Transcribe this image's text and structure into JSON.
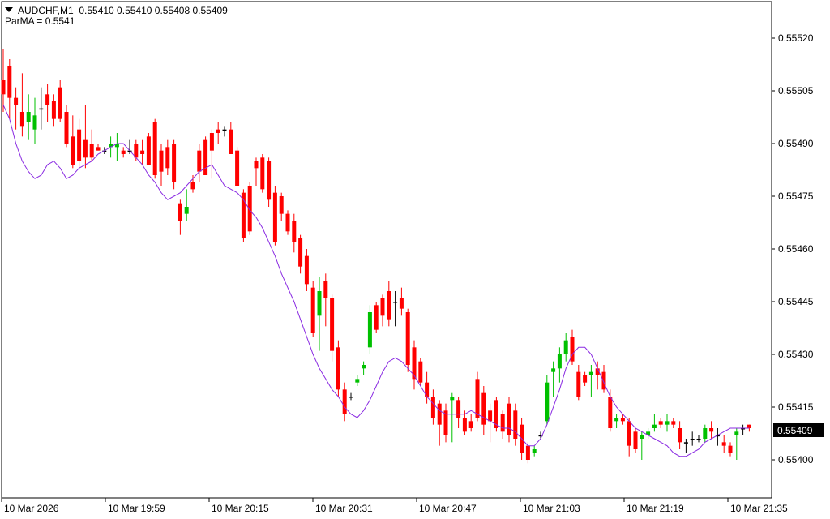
{
  "header": {
    "symbol": "AUDCHF,M1",
    "ohlc": "0.55410 0.55410 0.55408 0.55409",
    "indicator": "ParMA = 0.5541"
  },
  "colors": {
    "bull": "#00c000",
    "bear": "#ff0000",
    "doji": "#000000",
    "ma": "#8a2be2",
    "axis": "#000000",
    "price_box_bg": "#000000",
    "price_box_text": "#ffffff"
  },
  "chart_data": {
    "type": "candlestick",
    "symbol": "AUDCHF",
    "timeframe": "M1",
    "current_price": "0.55409",
    "y_ticks": [
      "0.55520",
      "0.55505",
      "0.55490",
      "0.55475",
      "0.55460",
      "0.55445",
      "0.55430",
      "0.55415",
      "0.55400"
    ],
    "x_ticks": [
      "10 Mar 2026",
      "10 Mar 19:59",
      "10 Mar 20:15",
      "10 Mar 20:31",
      "10 Mar 20:47",
      "10 Mar 21:03",
      "10 Mar 21:19",
      "10 Mar 21:35"
    ],
    "ylim": [
      0.55394,
      0.55528
    ],
    "candles": [
      [
        0.55508,
        0.55517,
        0.55499,
        0.55504
      ],
      [
        0.55512,
        0.55514,
        0.55497,
        0.55503
      ],
      [
        0.55503,
        0.55506,
        0.55494,
        0.55501
      ],
      [
        0.55499,
        0.5551,
        0.55492,
        0.55495
      ],
      [
        0.55496,
        0.55504,
        0.55491,
        0.55499
      ],
      [
        0.55494,
        0.55503,
        0.5549,
        0.55498
      ],
      [
        0.555,
        0.55506,
        0.55494,
        0.555
      ],
      [
        0.55504,
        0.55507,
        0.55496,
        0.55501
      ],
      [
        0.55502,
        0.55504,
        0.55495,
        0.55497
      ],
      [
        0.55506,
        0.55508,
        0.55496,
        0.55497
      ],
      [
        0.55499,
        0.55501,
        0.55489,
        0.5549
      ],
      [
        0.55492,
        0.55498,
        0.55483,
        0.55484
      ],
      [
        0.55494,
        0.55497,
        0.55483,
        0.55485
      ],
      [
        0.55491,
        0.55501,
        0.55483,
        0.55486
      ],
      [
        0.5549,
        0.55494,
        0.55485,
        0.55486
      ],
      [
        0.55489,
        0.5549,
        0.55488,
        0.55488
      ],
      [
        0.55488,
        0.55489,
        0.55487,
        0.55488
      ],
      [
        0.55489,
        0.55492,
        0.55486,
        0.5549
      ],
      [
        0.55489,
        0.55493,
        0.55485,
        0.5549
      ],
      [
        0.55488,
        0.55489,
        0.55486,
        0.55487
      ],
      [
        0.55488,
        0.55491,
        0.55487,
        0.55488
      ],
      [
        0.5549,
        0.55491,
        0.55485,
        0.55486
      ],
      [
        0.55488,
        0.55491,
        0.55484,
        0.55487
      ],
      [
        0.55492,
        0.55493,
        0.55484,
        0.55484
      ],
      [
        0.55496,
        0.55497,
        0.5548,
        0.55481
      ],
      [
        0.55488,
        0.5549,
        0.55478,
        0.55482
      ],
      [
        0.55489,
        0.55491,
        0.55481,
        0.55483
      ],
      [
        0.5549,
        0.55491,
        0.55477,
        0.55479
      ],
      [
        0.55473,
        0.55474,
        0.55464,
        0.55468
      ],
      [
        0.5547,
        0.55477,
        0.55468,
        0.55472
      ],
      [
        0.55479,
        0.55481,
        0.55476,
        0.55477
      ],
      [
        0.55488,
        0.5549,
        0.55479,
        0.55482
      ],
      [
        0.55491,
        0.55492,
        0.55481,
        0.55481
      ],
      [
        0.55493,
        0.55494,
        0.5548,
        0.55488
      ],
      [
        0.55494,
        0.55496,
        0.5549,
        0.55493
      ],
      [
        0.55494,
        0.55495,
        0.55492,
        0.55494
      ],
      [
        0.55494,
        0.55496,
        0.55487,
        0.55487
      ],
      [
        0.55488,
        0.55489,
        0.55478,
        0.55478
      ],
      [
        0.55476,
        0.55477,
        0.55462,
        0.55463
      ],
      [
        0.55478,
        0.55479,
        0.55464,
        0.55465
      ],
      [
        0.55485,
        0.55486,
        0.55478,
        0.55483
      ],
      [
        0.55486,
        0.55487,
        0.55476,
        0.55477
      ],
      [
        0.55485,
        0.55486,
        0.55472,
        0.55474
      ],
      [
        0.55476,
        0.55478,
        0.55461,
        0.55462
      ],
      [
        0.55475,
        0.55476,
        0.55468,
        0.5547
      ],
      [
        0.5547,
        0.55471,
        0.55464,
        0.55465
      ],
      [
        0.55468,
        0.5547,
        0.55459,
        0.55462
      ],
      [
        0.55463,
        0.55464,
        0.55453,
        0.55455
      ],
      [
        0.55458,
        0.5546,
        0.55448,
        0.5545
      ],
      [
        0.55449,
        0.55451,
        0.55435,
        0.55436
      ],
      [
        0.55441,
        0.55452,
        0.55431,
        0.55448
      ],
      [
        0.55451,
        0.55453,
        0.55438,
        0.55446
      ],
      [
        0.55446,
        0.55447,
        0.55428,
        0.55431
      ],
      [
        0.55432,
        0.55434,
        0.55418,
        0.5542
      ],
      [
        0.5542,
        0.55422,
        0.55411,
        0.55413
      ],
      [
        0.55418,
        0.55419,
        0.55417,
        0.55418
      ],
      [
        0.55422,
        0.55424,
        0.55421,
        0.55423
      ],
      [
        0.55426,
        0.55428,
        0.55424,
        0.55427
      ],
      [
        0.55432,
        0.55444,
        0.5543,
        0.55442
      ],
      [
        0.55444,
        0.55445,
        0.55436,
        0.55437
      ],
      [
        0.55446,
        0.55447,
        0.55438,
        0.55441
      ],
      [
        0.55448,
        0.55451,
        0.55438,
        0.5544
      ],
      [
        0.55445,
        0.55448,
        0.55438,
        0.55445
      ],
      [
        0.55446,
        0.55449,
        0.55441,
        0.55443
      ],
      [
        0.55442,
        0.55443,
        0.55425,
        0.55427
      ],
      [
        0.55432,
        0.55434,
        0.5542,
        0.55423
      ],
      [
        0.55428,
        0.55429,
        0.55421,
        0.55422
      ],
      [
        0.55422,
        0.55425,
        0.55416,
        0.55418
      ],
      [
        0.55418,
        0.5542,
        0.5541,
        0.55412
      ],
      [
        0.55416,
        0.55417,
        0.55404,
        0.5541
      ],
      [
        0.55414,
        0.55416,
        0.55405,
        0.55407
      ],
      [
        0.55417,
        0.55419,
        0.55405,
        0.55418
      ],
      [
        0.55417,
        0.55418,
        0.55409,
        0.55412
      ],
      [
        0.55412,
        0.55414,
        0.55407,
        0.55408
      ],
      [
        0.55411,
        0.55413,
        0.55408,
        0.55409
      ],
      [
        0.55423,
        0.55425,
        0.55411,
        0.55412
      ],
      [
        0.55419,
        0.55421,
        0.55407,
        0.5541
      ],
      [
        0.55414,
        0.55416,
        0.55405,
        0.55411
      ],
      [
        0.55417,
        0.55418,
        0.55408,
        0.55409
      ],
      [
        0.55413,
        0.55414,
        0.55406,
        0.55408
      ],
      [
        0.55416,
        0.55418,
        0.55405,
        0.55407
      ],
      [
        0.55414,
        0.55416,
        0.55404,
        0.55406
      ],
      [
        0.5541,
        0.55412,
        0.554,
        0.55402
      ],
      [
        0.55404,
        0.55405,
        0.55399,
        0.554
      ],
      [
        0.55402,
        0.55404,
        0.55401,
        0.55403
      ],
      [
        0.55407,
        0.55408,
        0.55406,
        0.55407
      ],
      [
        0.55411,
        0.55424,
        0.5541,
        0.55422
      ],
      [
        0.55425,
        0.55428,
        0.55418,
        0.55426
      ],
      [
        0.55426,
        0.55432,
        0.55422,
        0.5543
      ],
      [
        0.5543,
        0.55436,
        0.55428,
        0.55434
      ],
      [
        0.55435,
        0.55437,
        0.55427,
        0.55428
      ],
      [
        0.55425,
        0.55427,
        0.55417,
        0.55418
      ],
      [
        0.55424,
        0.55425,
        0.55421,
        0.55422
      ],
      [
        0.55424,
        0.55427,
        0.55418,
        0.55425
      ],
      [
        0.55426,
        0.55428,
        0.5542,
        0.55424
      ],
      [
        0.55425,
        0.55427,
        0.55419,
        0.5542
      ],
      [
        0.55418,
        0.5542,
        0.55408,
        0.55409
      ],
      [
        0.55411,
        0.55413,
        0.55409,
        0.55412
      ],
      [
        0.55412,
        0.55413,
        0.5541,
        0.55411
      ],
      [
        0.55411,
        0.55412,
        0.55401,
        0.55404
      ],
      [
        0.55408,
        0.55409,
        0.55402,
        0.55403
      ],
      [
        0.55406,
        0.55408,
        0.554,
        0.55407
      ],
      [
        0.55407,
        0.55409,
        0.55406,
        0.55408
      ],
      [
        0.55409,
        0.55413,
        0.55408,
        0.5541
      ],
      [
        0.55411,
        0.55412,
        0.55409,
        0.5541
      ],
      [
        0.5541,
        0.55413,
        0.55408,
        0.55411
      ],
      [
        0.55411,
        0.55412,
        0.55409,
        0.5541
      ],
      [
        0.55409,
        0.55411,
        0.55403,
        0.55405
      ],
      [
        0.55405,
        0.55406,
        0.55402,
        0.55405
      ],
      [
        0.55406,
        0.55408,
        0.55404,
        0.55406
      ],
      [
        0.55406,
        0.55407,
        0.55405,
        0.55406
      ],
      [
        0.55406,
        0.5541,
        0.55405,
        0.55409
      ],
      [
        0.55409,
        0.55411,
        0.55406,
        0.55408
      ],
      [
        0.55407,
        0.55409,
        0.55404,
        0.55407
      ],
      [
        0.55405,
        0.55407,
        0.55402,
        0.55404
      ],
      [
        0.55404,
        0.55405,
        0.55401,
        0.55402
      ],
      [
        0.55407,
        0.55409,
        0.554,
        0.55408
      ],
      [
        0.55409,
        0.5541,
        0.55407,
        0.55409
      ],
      [
        0.5541,
        0.5541,
        0.55408,
        0.55409
      ]
    ],
    "ma": [
      0.55501,
      0.55497,
      0.5549,
      0.55485,
      0.55482,
      0.5548,
      0.55481,
      0.55484,
      0.55485,
      0.55483,
      0.5548,
      0.55481,
      0.55483,
      0.55484,
      0.55485,
      0.55487,
      0.55488,
      0.55489,
      0.5549,
      0.5549,
      0.55488,
      0.55486,
      0.55484,
      0.55481,
      0.55479,
      0.55476,
      0.55474,
      0.55475,
      0.55476,
      0.55478,
      0.5548,
      0.55482,
      0.55483,
      0.55484,
      0.55481,
      0.55478,
      0.55477,
      0.55476,
      0.55474,
      0.55471,
      0.55469,
      0.55466,
      0.55462,
      0.55458,
      0.55453,
      0.55449,
      0.55445,
      0.5544,
      0.55435,
      0.5543,
      0.55426,
      0.55423,
      0.5542,
      0.55418,
      0.55415,
      0.55413,
      0.55412,
      0.55414,
      0.55417,
      0.55421,
      0.55425,
      0.55428,
      0.55429,
      0.55428,
      0.55426,
      0.55424,
      0.55421,
      0.55418,
      0.55416,
      0.55414,
      0.55413,
      0.55413,
      0.55413,
      0.55413,
      0.55414,
      0.55413,
      0.55412,
      0.55411,
      0.5541,
      0.55409,
      0.55409,
      0.55408,
      0.55406,
      0.55404,
      0.55404,
      0.55406,
      0.5541,
      0.55415,
      0.5542,
      0.55426,
      0.5543,
      0.55432,
      0.55432,
      0.5543,
      0.55426,
      0.55422,
      0.55418,
      0.55415,
      0.55413,
      0.55411,
      0.55409,
      0.55408,
      0.55407,
      0.55406,
      0.55405,
      0.55404,
      0.55402,
      0.55401,
      0.55401,
      0.55402,
      0.55403,
      0.55405,
      0.55406,
      0.55407,
      0.55408,
      0.55409,
      0.55409,
      0.55409,
      0.55409
    ]
  }
}
